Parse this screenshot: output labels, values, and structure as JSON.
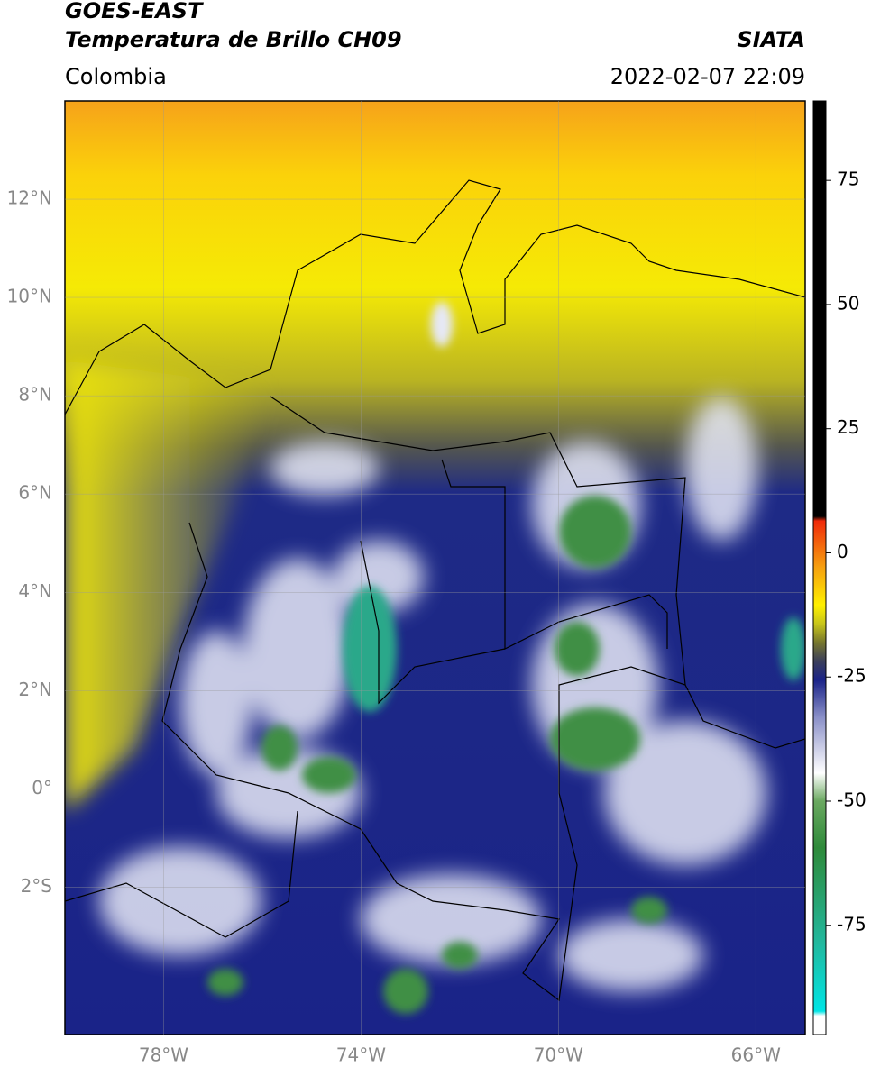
{
  "header": {
    "title_line1": "GOES-EAST",
    "title_line2": "Temperatura de Brillo CH09",
    "region": "Colombia",
    "source": "SIATA",
    "datetime": "2022-02-07 22:09"
  },
  "map": {
    "lat_range": [
      -5,
      14
    ],
    "lon_range": [
      -80,
      -65
    ],
    "lat_ticks": [
      {
        "value": 12,
        "label": "12°N"
      },
      {
        "value": 10,
        "label": "10°N"
      },
      {
        "value": 8,
        "label": "8°N"
      },
      {
        "value": 6,
        "label": "6°N"
      },
      {
        "value": 4,
        "label": "4°N"
      },
      {
        "value": 2,
        "label": "2°N"
      },
      {
        "value": 0,
        "label": "0°"
      },
      {
        "value": -2,
        "label": "2°S"
      }
    ],
    "lon_ticks": [
      {
        "value": -78,
        "label": "78°W"
      },
      {
        "value": -74,
        "label": "74°W"
      },
      {
        "value": -70,
        "label": "70°W"
      },
      {
        "value": -66,
        "label": "66°W"
      }
    ]
  },
  "colorbar": {
    "range": [
      -97,
      91
    ],
    "ticks": [
      75,
      50,
      25,
      0,
      -25,
      -50,
      -75
    ]
  }
}
